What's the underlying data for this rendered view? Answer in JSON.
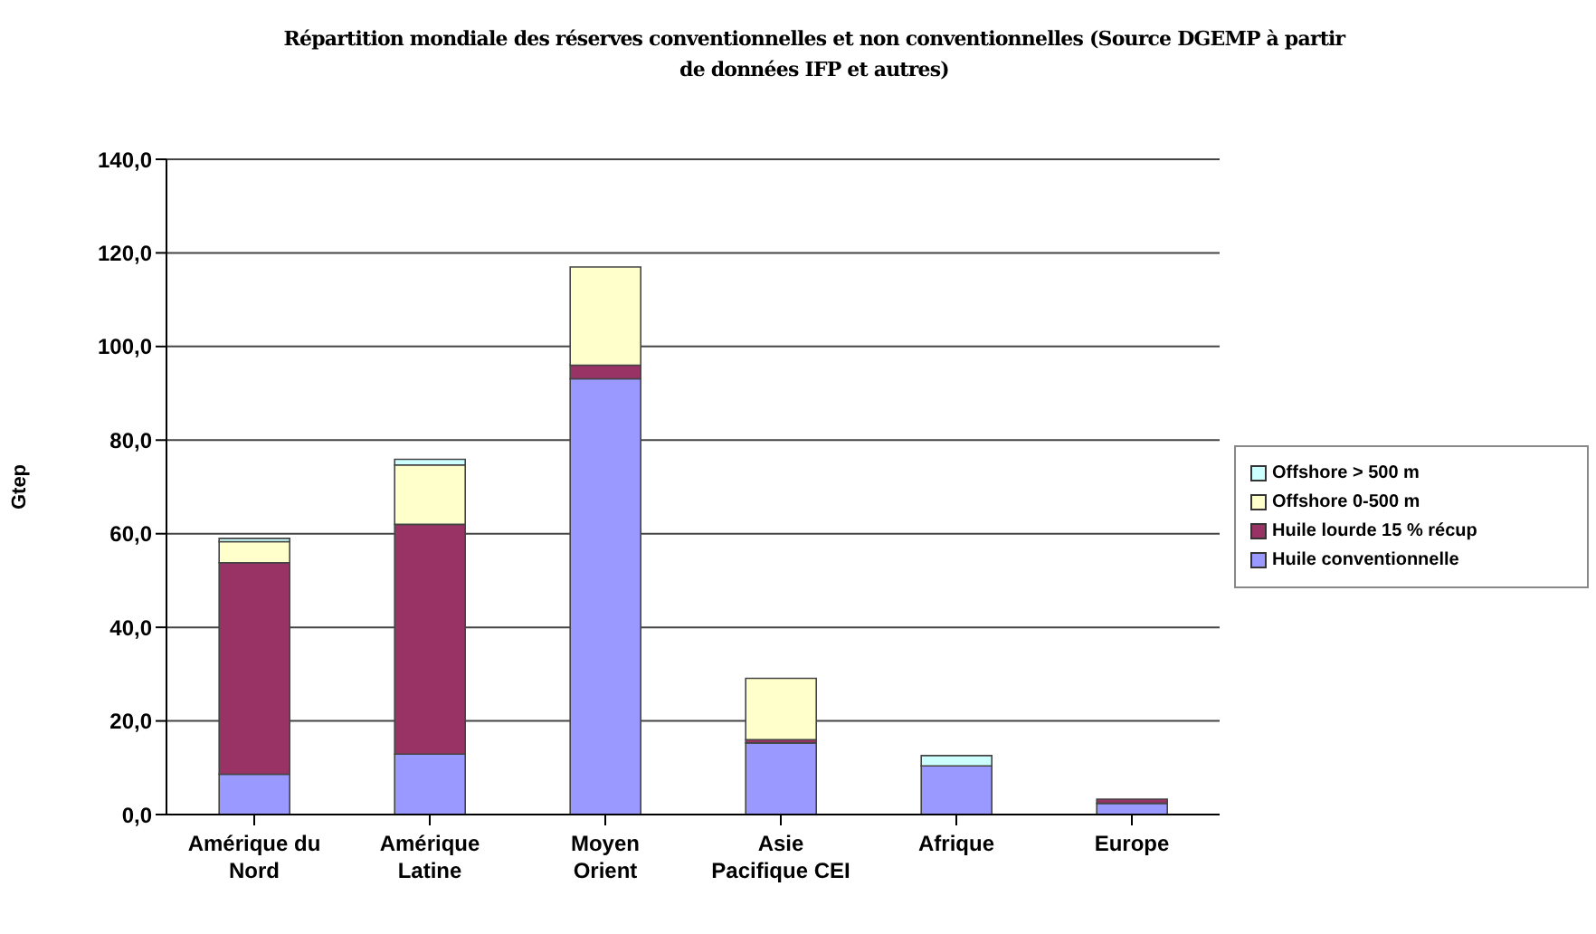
{
  "chart_data": {
    "type": "bar",
    "title": "Répartition mondiale des réserves conventionnelles et non conventionnelles (Source DGEMP à partir de données IFP et autres)",
    "ylabel": "Gtep",
    "categories": [
      "Amérique du Nord",
      "Amérique Latine",
      "Moyen Orient",
      "Asie Pacifique CEI",
      "Afrique",
      "Europe"
    ],
    "stacked": true,
    "series": [
      {
        "name": "Huile conventionnelle",
        "color": "#9999ff",
        "values": [
          8.6,
          12.9,
          93.1,
          15.3,
          10.4,
          2.4
        ]
      },
      {
        "name": "Huile lourde 15 %  récup",
        "color": "#993366",
        "values": [
          45.2,
          49.1,
          2.9,
          0.7,
          null,
          0.9
        ]
      },
      {
        "name": "Offshore 0-500 m",
        "color": "#ffffcc",
        "values": [
          4.5,
          12.7,
          21.0,
          13.1,
          null,
          null
        ]
      },
      {
        "name": "Offshore > 500 m",
        "color": "#ccffff",
        "values": [
          0.7,
          1.2,
          null,
          null,
          2.2,
          null
        ]
      }
    ],
    "ylim": [
      0,
      140
    ],
    "yticks": [
      {
        "value": 0,
        "label": "0,0"
      },
      {
        "value": 20,
        "label": "20,0"
      },
      {
        "value": 40,
        "label": "40,0"
      },
      {
        "value": 60,
        "label": "60,0"
      },
      {
        "value": 80,
        "label": "80,0"
      },
      {
        "value": 100,
        "label": "100,0"
      },
      {
        "value": 120,
        "label": "120,0"
      },
      {
        "value": 140,
        "label": "140,0"
      }
    ],
    "grid": "y",
    "legend": "right"
  }
}
